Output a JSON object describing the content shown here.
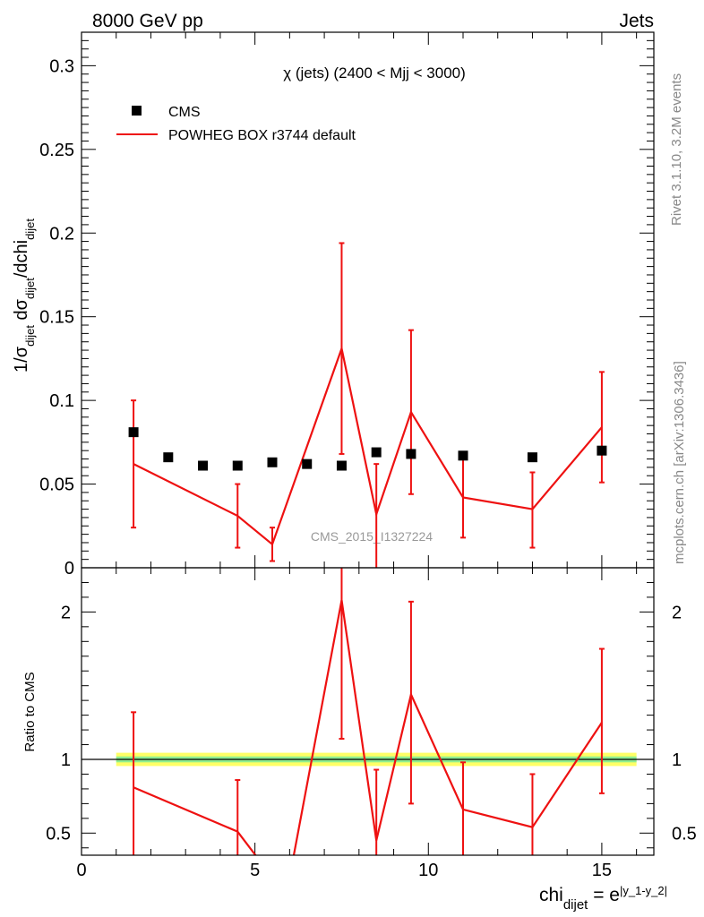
{
  "header": {
    "left": "8000 GeV pp",
    "right": "Jets"
  },
  "side_labels": {
    "rivet": "Rivet 3.1.10,  3.2M events",
    "mcplots": "mcplots.cern.ch [arXiv:1306.3436]"
  },
  "chart_data": [
    {
      "type": "scatter",
      "panel": "main",
      "title": "χ (jets) (2400 < Mjj < 3000)",
      "watermark": "CMS_2015_I1327224",
      "ylabel_parts": {
        "a": "1/σ",
        "a_sub": "dijet",
        "b": " dσ",
        "b_sub": "dijet",
        "c": "/dchi",
        "c_sub": "dijet"
      },
      "ylim": [
        0,
        0.32
      ],
      "xlim": [
        0,
        16.5
      ],
      "yticks": [
        0,
        0.05,
        0.1,
        0.15,
        0.2,
        0.25,
        0.3
      ],
      "ytick_labels": [
        "0",
        "0.05",
        "0.1",
        "0.15",
        "0.2",
        "0.25",
        "0.3"
      ],
      "legend": {
        "position": "top-left",
        "entries": [
          "CMS",
          "POWHEG BOX r3744 default"
        ]
      },
      "series": [
        {
          "name": "CMS",
          "style": "markers",
          "color": "#000000",
          "x": [
            1.5,
            2.5,
            3.5,
            4.5,
            5.5,
            6.5,
            7.5,
            8.5,
            9.5,
            11,
            13,
            15
          ],
          "y": [
            0.081,
            0.066,
            0.061,
            0.061,
            0.063,
            0.062,
            0.061,
            0.069,
            0.068,
            0.067,
            0.066,
            0.07
          ]
        },
        {
          "name": "POWHEG BOX r3744 default",
          "style": "line-errorbars",
          "color": "#ee1111",
          "x": [
            1.5,
            4.5,
            5.5,
            7.5,
            8.5,
            9.5,
            11,
            13,
            15
          ],
          "y": [
            0.062,
            0.031,
            0.014,
            0.131,
            0.032,
            0.093,
            0.042,
            0.035,
            0.084
          ],
          "yerr_low": [
            0.024,
            0.012,
            0.004,
            0.068,
            -0.01,
            0.044,
            0.018,
            0.012,
            0.051
          ],
          "yerr_high": [
            0.1,
            0.05,
            0.024,
            0.194,
            0.062,
            0.142,
            0.065,
            0.057,
            0.117
          ]
        }
      ]
    },
    {
      "type": "line",
      "panel": "ratio",
      "ylabel": "Ratio to CMS",
      "xlabel_parts": {
        "base": "chi",
        "sub": "dijet",
        "eq": " = e",
        "sup": "|y_1-y_2|"
      },
      "ylim": [
        0.35,
        2.3
      ],
      "xlim": [
        0,
        16.5
      ],
      "xticks": [
        0,
        5,
        10,
        15
      ],
      "xtick_labels": [
        "0",
        "5",
        "10",
        "15"
      ],
      "yticks": [
        0.5,
        1,
        2
      ],
      "ytick_labels": [
        "0.5",
        "1",
        "2"
      ],
      "band": {
        "x_range": [
          1,
          16
        ],
        "inner": [
          0.98,
          1.02
        ],
        "outer": [
          0.955,
          1.045
        ],
        "inner_color": "#90ee90",
        "outer_color": "#ffff66"
      },
      "series": [
        {
          "name": "POWHEG BOX r3744 default",
          "color": "#ee1111",
          "x": [
            1.5,
            4.5,
            5.5,
            6,
            7.5,
            8.5,
            9.5,
            11,
            13,
            15
          ],
          "y": [
            0.81,
            0.51,
            0.2,
            0.2,
            2.08,
            0.45,
            1.44,
            0.66,
            0.54,
            1.25
          ],
          "yerr_low": [
            0.3,
            0.2,
            null,
            null,
            1.14,
            0.2,
            0.7,
            0.25,
            0.2,
            0.77
          ],
          "yerr_high": [
            1.32,
            0.86,
            null,
            null,
            2.4,
            0.93,
            2.07,
            0.98,
            0.9,
            1.75
          ]
        }
      ]
    }
  ]
}
